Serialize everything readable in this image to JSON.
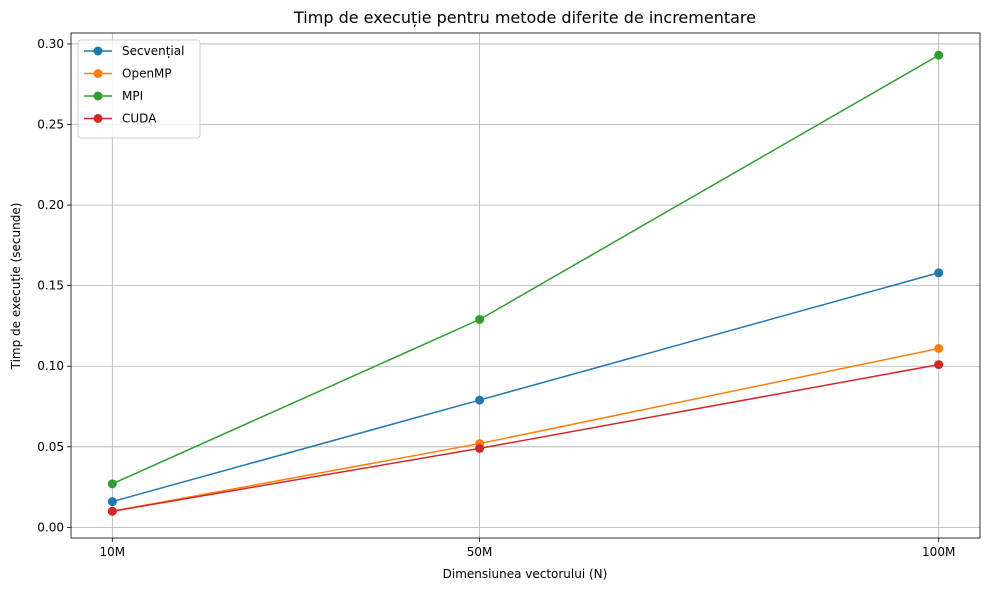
{
  "chart_data": {
    "type": "line",
    "title": "Timp de execuție pentru metode diferite de incrementare",
    "xlabel": "Dimensiunea vectorului (N)",
    "ylabel": "Timp de execuție (secunde)",
    "categories": [
      "10M",
      "50M",
      "100M"
    ],
    "x": [
      10,
      50,
      100
    ],
    "ylim": [
      -0.0066,
      0.3068
    ],
    "yticks": [
      0.0,
      0.05,
      0.1,
      0.15,
      0.2,
      0.25,
      0.3
    ],
    "ytick_labels": [
      "0.00",
      "0.05",
      "0.10",
      "0.15",
      "0.20",
      "0.25",
      "0.30"
    ],
    "grid": true,
    "legend_position": "top-left",
    "series": [
      {
        "name": "Secvențial",
        "color": "#1f77b4",
        "values": [
          0.016,
          0.079,
          0.158
        ]
      },
      {
        "name": "OpenMP",
        "color": "#ff7f0e",
        "values": [
          0.01,
          0.052,
          0.111
        ]
      },
      {
        "name": "MPI",
        "color": "#2ca02c",
        "values": [
          0.027,
          0.129,
          0.293
        ]
      },
      {
        "name": "CUDA",
        "color": "#d62728",
        "values": [
          0.01,
          0.049,
          0.101
        ]
      }
    ]
  }
}
